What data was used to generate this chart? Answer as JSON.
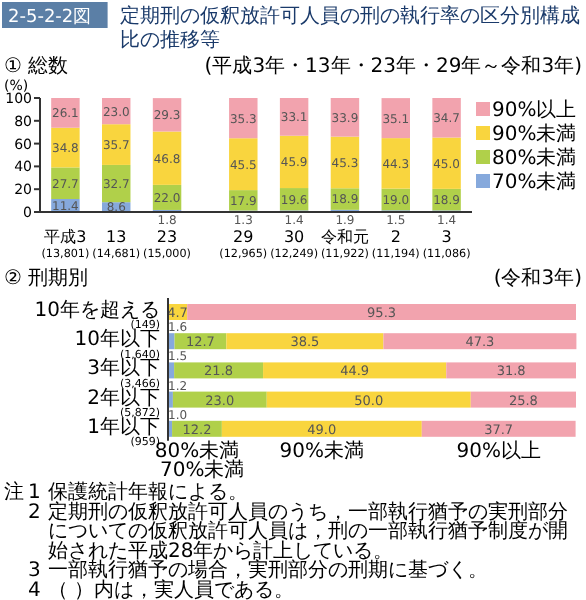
{
  "chart_data": [
    {
      "type": "bar",
      "title": "定期刑の仮釈放許可人員の刑の執行率の区分別構成比の推移等",
      "subtitle": "① 総数",
      "ylabel": "(%)",
      "annotations": [
        "2-5-2-2図",
        "(平成3年・13年・23年・29年～令和3年)"
      ],
      "categories": [
        "平成3\n(13,801)",
        "13\n(14,681)",
        "23\n(15,000)",
        null,
        "29\n(12,965)",
        "30\n(12,249)",
        "令和元\n(11,922)",
        "2\n(11,194)",
        "3\n(11,086)"
      ],
      "stacked": true,
      "ylim": [
        0,
        100
      ],
      "yticks": [
        0,
        20,
        40,
        60,
        80,
        100
      ],
      "legend": "right",
      "series": [
        {
          "name": "70%未満",
          "color": "#86a9dc",
          "values": [
            11.4,
            8.6,
            1.8,
            null,
            1.3,
            1.4,
            1.9,
            1.5,
            1.4
          ],
          "value_labels": [
            "11.4",
            "8.6",
            "1.8",
            null,
            "1.3",
            "1.4",
            "1.9",
            "1.5",
            "1.4"
          ]
        },
        {
          "name": "80%未満",
          "color": "#b0d04a",
          "values": [
            27.7,
            32.7,
            22.0,
            null,
            17.9,
            19.6,
            18.9,
            19.0,
            18.9
          ],
          "value_labels": [
            "27.7",
            "32.7",
            "22.0",
            null,
            "17.9",
            "19.6",
            "18.9",
            "19.0",
            "18.9"
          ]
        },
        {
          "name": "90%未満",
          "color": "#f9d53e",
          "values": [
            34.8,
            35.7,
            46.8,
            null,
            45.5,
            45.9,
            45.3,
            44.3,
            45.0
          ],
          "value_labels": [
            "34.8",
            "35.7",
            "46.8",
            null,
            "45.5",
            "45.9",
            "45.3",
            "44.3",
            "45.0"
          ]
        },
        {
          "name": "90%以上",
          "color": "#f2a3ae",
          "values": [
            26.1,
            23.0,
            29.3,
            null,
            35.3,
            33.1,
            33.9,
            35.1,
            34.7
          ],
          "value_labels": [
            "26.1",
            "23.0",
            "29.3",
            null,
            "35.3",
            "33.1",
            "33.9",
            "35.1",
            "34.7"
          ]
        }
      ]
    },
    {
      "type": "bar",
      "orientation": "horizontal",
      "subtitle": "② 刑期別",
      "annotations": [
        "(令和3年)",
        "注",
        "1 保護統計年報による。",
        "2 定期刑の仮釈放許可人員のうち，一部執行猶予の実刑部分についての仮釈放許可人員は，刑の一部執行猶予制度が開始された平成28年から計上している。",
        "3 一部執行猶予の場合，実刑部分の刑期に基づく。",
        "4 （ ）内は，実人員である。"
      ],
      "categories": [
        "10年を超える\n(149)",
        "10年以下\n(1,640)",
        "3年以下\n(3,466)",
        "2年以下\n(5,872)",
        "1年以下\n(959)"
      ],
      "stacked": true,
      "xlim": [
        0,
        100
      ],
      "tick_labels": "y",
      "legend": "bottom",
      "series": [
        {
          "name": "70%未満",
          "color": "#86a9dc",
          "values": [
            null,
            1.6,
            1.5,
            1.2,
            1.0
          ],
          "value_labels": [
            null,
            "1.6",
            "1.5",
            "1.2",
            "1.0"
          ]
        },
        {
          "name": "80%未満",
          "color": "#b0d04a",
          "values": [
            null,
            12.7,
            21.8,
            23.0,
            12.2
          ],
          "value_labels": [
            null,
            "12.7",
            "21.8",
            "23.0",
            "12.2"
          ]
        },
        {
          "name": "90%未満",
          "color": "#f9d53e",
          "values": [
            4.7,
            38.5,
            44.9,
            50.0,
            49.0
          ],
          "value_labels": [
            "4.7",
            "38.5",
            "44.9",
            "50.0",
            "49.0"
          ]
        },
        {
          "name": "90%以上",
          "color": "#f2a3ae",
          "values": [
            95.3,
            47.3,
            31.8,
            25.8,
            37.7
          ],
          "value_labels": [
            "95.3",
            "47.3",
            "31.8",
            "25.8",
            "37.7"
          ]
        }
      ]
    }
  ]
}
